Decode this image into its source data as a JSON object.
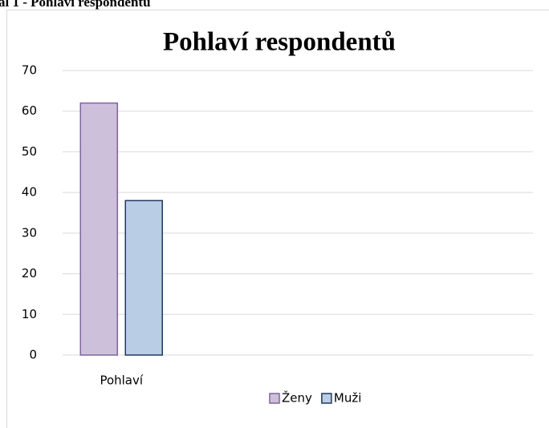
{
  "caption": "al 1 - Pohlaví respondentů",
  "chart_data": {
    "type": "bar",
    "title": "Pohlaví respondentů",
    "categories": [
      "Pohlaví",
      null,
      null,
      null
    ],
    "series": [
      {
        "name": "Ženy",
        "color": "#ccc0da",
        "edge": "#8064a2",
        "values": [
          62,
          null,
          null,
          null
        ]
      },
      {
        "name": "Muži",
        "color": "#b9cde5",
        "edge": "#1f3864",
        "values": [
          38,
          null,
          null,
          null
        ]
      }
    ],
    "ylim": [
      0,
      70
    ],
    "yticks": [
      0,
      10,
      20,
      30,
      40,
      50,
      60,
      70
    ],
    "grid": true,
    "legend": "bottom"
  }
}
